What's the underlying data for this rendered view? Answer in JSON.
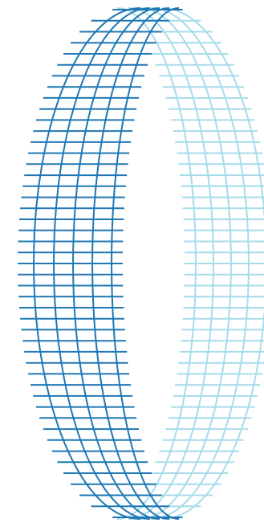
{
  "graphic": {
    "name": "wireframe-ring",
    "colors": {
      "dark_blue": "#1f78b4",
      "light_blue": "#a6dcea",
      "background": "#ffffff"
    }
  }
}
